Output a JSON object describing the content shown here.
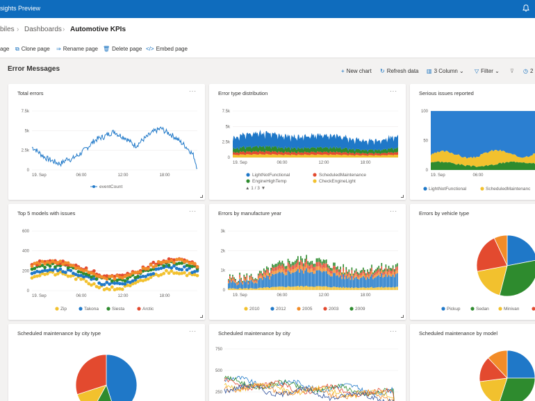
{
  "app": {
    "title": "sights Preview"
  },
  "breadcrumb": {
    "items": [
      "biles",
      "Dashboards",
      "Automotive KPIs"
    ]
  },
  "page_actions": [
    {
      "label": "age",
      "icon": ""
    },
    {
      "label": "Clone page",
      "icon": "clone-icon"
    },
    {
      "label": "Rename page",
      "icon": "rename-icon"
    },
    {
      "label": "Delete page",
      "icon": "delete-icon"
    },
    {
      "label": "Embed page",
      "icon": "embed-icon"
    }
  ],
  "section": {
    "title": "Error Messages",
    "new_chart": "New chart",
    "refresh": "Refresh data",
    "columns": "3 Column",
    "filter": "Filter",
    "overflow": "2"
  },
  "colors": {
    "blue": "#0f6cbd",
    "red": "#e34a2f",
    "green": "#2e8b2e",
    "yellow": "#f2c12e",
    "orange": "#f28c28",
    "darkblue": "#2a4d9b"
  },
  "charts": {
    "total_errors": {
      "title": "Total errors",
      "chart_data": {
        "type": "line",
        "x_ticks": [
          "19. Sep",
          "06:00",
          "12:00",
          "18:00"
        ],
        "y_ticks": [
          "7.5k",
          "5k",
          "2.5k",
          "0"
        ],
        "ylim": [
          0,
          7500
        ],
        "series": [
          {
            "name": "eventCount",
            "values": [
              2900,
              2600,
              2200,
              1800,
              1500,
              1300,
              1100,
              900,
              800,
              1100,
              1500,
              1300,
              1700,
              1900,
              2300,
              2700,
              3100,
              3600,
              3900,
              4100,
              4200,
              4500,
              4700,
              4900,
              4500,
              4300,
              4100,
              3700,
              3300,
              3100,
              3500,
              3900,
              4200,
              4600,
              4900,
              5100,
              5300,
              4900,
              4700,
              4400,
              4100,
              3700,
              3300,
              2900,
              2400,
              1800,
              200
            ]
          }
        ]
      }
    },
    "error_type_distribution": {
      "title": "Error type distribution",
      "pager": "1 / 3",
      "chart_data": {
        "type": "area",
        "x_ticks": [
          "19. Sep",
          "06:00",
          "12:00",
          "18:00"
        ],
        "y_ticks": [
          "7.5k",
          "5k",
          "2.5k",
          "0"
        ],
        "ylim": [
          0,
          7500
        ],
        "legend": [
          "LightNotFunctional",
          "ScheduledMaintenance",
          "EngineHighTemp",
          "CheckEngineLight"
        ]
      }
    },
    "serious_issues": {
      "title": "Serious issues reported",
      "chart_data": {
        "type": "area",
        "x_ticks": [
          "19. Sep",
          "06:00"
        ],
        "y_ticks": [
          "100",
          "50",
          "0"
        ],
        "ylim": [
          0,
          100
        ],
        "legend": [
          "LightNotFunctional",
          "ScheduledMaintenanc"
        ]
      }
    },
    "top5_models": {
      "title": "Top 5 models with issues",
      "chart_data": {
        "type": "scatter",
        "x_ticks": [
          "19. Sep",
          "06:00",
          "12:00",
          "18:00"
        ],
        "y_ticks": [
          "600",
          "400",
          "200",
          "0"
        ],
        "ylim": [
          0,
          600
        ],
        "legend": [
          "Zip",
          "Takona",
          "Siesta",
          "Arctic"
        ]
      }
    },
    "errors_by_year": {
      "title": "Errors by manufacture year",
      "chart_data": {
        "type": "bar",
        "x_ticks": [
          "19. Sep",
          "06:00",
          "12:00",
          "18:00"
        ],
        "y_ticks": [
          "3k",
          "2k",
          "1k",
          "0"
        ],
        "ylim": [
          0,
          3000
        ],
        "legend": [
          "2010",
          "2012",
          "2005",
          "2003",
          "2009"
        ]
      }
    },
    "errors_by_vehicle": {
      "title": "Errors by vehicle type",
      "chart_data": {
        "type": "pie",
        "legend": [
          "Pickup",
          "Sedan",
          "Minivan"
        ],
        "slices": [
          {
            "name": "Pickup",
            "value": 22
          },
          {
            "name": "Sedan",
            "value": 32
          },
          {
            "name": "Minivan",
            "value": 18
          },
          {
            "name": "",
            "value": 21
          },
          {
            "name": "",
            "value": 7
          }
        ]
      }
    },
    "maint_by_city_type": {
      "title": "Scheduled maintenance by city type",
      "chart_data": {
        "type": "pie",
        "slices": [
          {
            "name": "",
            "value": 45
          },
          {
            "name": "",
            "value": 13
          },
          {
            "name": "",
            "value": 12
          },
          {
            "name": "",
            "value": 30
          }
        ]
      }
    },
    "maint_by_city": {
      "title": "Scheduled maintenance by city",
      "chart_data": {
        "type": "line",
        "y_ticks": [
          "750",
          "500",
          "250"
        ],
        "ylim": [
          0,
          800
        ]
      }
    },
    "maint_by_model": {
      "title": "Scheduled maintenance by model",
      "chart_data": {
        "type": "pie",
        "slices": [
          {
            "name": "",
            "value": 25
          },
          {
            "name": "",
            "value": 30
          },
          {
            "name": "",
            "value": 18
          },
          {
            "name": "",
            "value": 15
          },
          {
            "name": "",
            "value": 12
          }
        ]
      }
    }
  }
}
